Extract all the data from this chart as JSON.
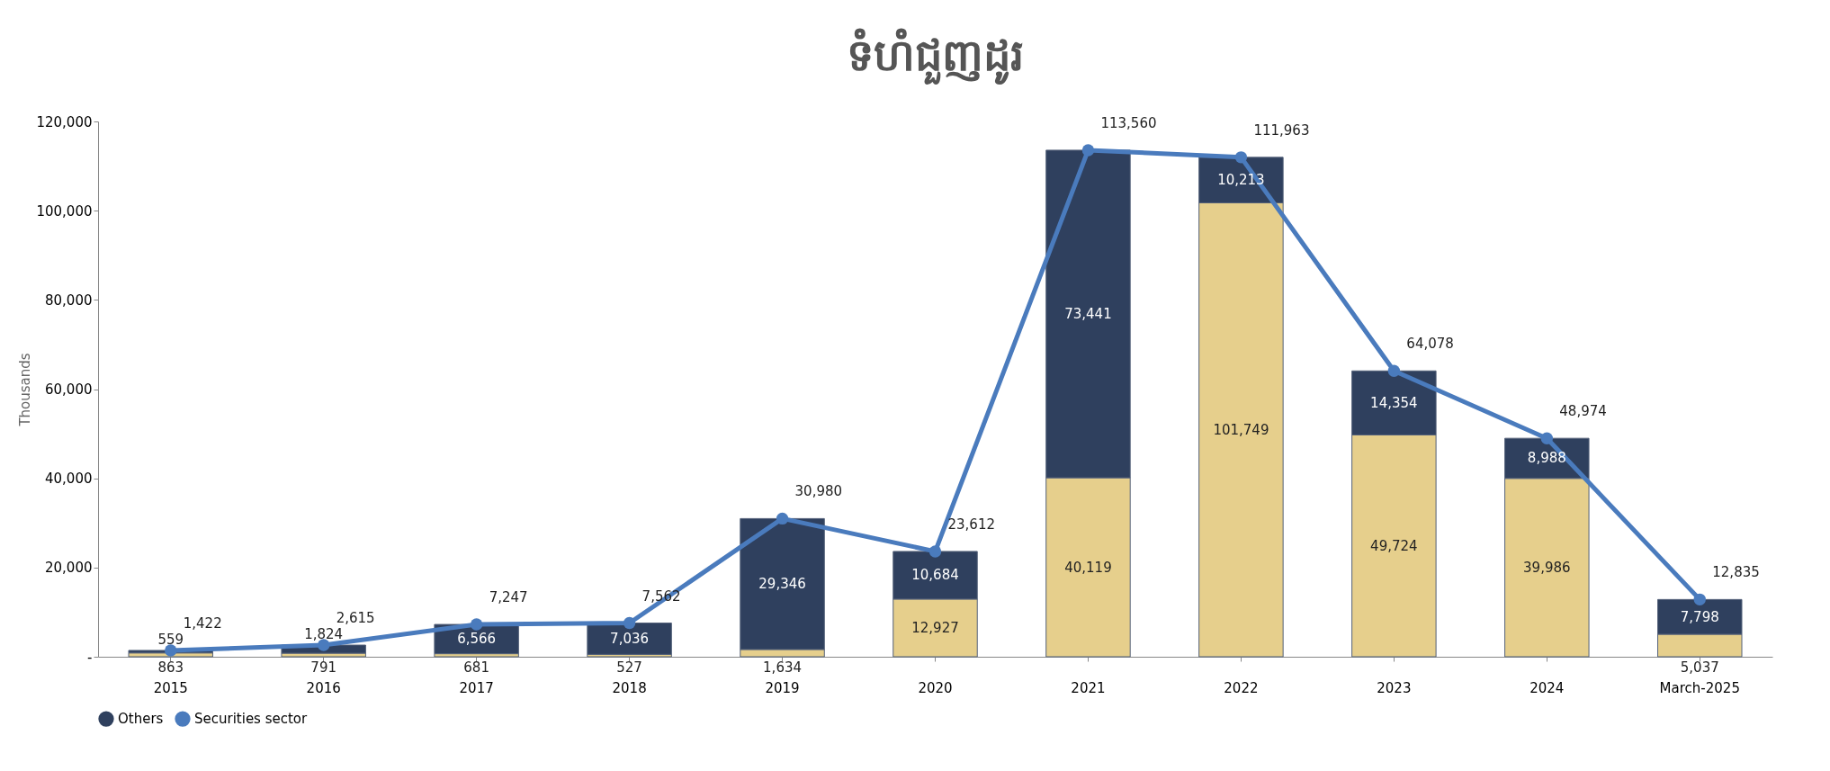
{
  "chart_data": {
    "type": "bar",
    "title": "ទំហំជួញដូរ",
    "ylabel": "Thousands",
    "categories": [
      "2015",
      "2016",
      "2017",
      "2018",
      "2019",
      "2020",
      "2021",
      "2022",
      "2023",
      "2024",
      "March-2025"
    ],
    "stacked": true,
    "legend": "bottom",
    "grid": false,
    "marker": "circle",
    "ylim": [
      0,
      120000
    ],
    "yticks": [
      {
        "value": 0,
        "label": "-"
      },
      {
        "value": 20000,
        "label": "20,000"
      },
      {
        "value": 40000,
        "label": "40,000"
      },
      {
        "value": 60000,
        "label": "60,000"
      },
      {
        "value": 80000,
        "label": "80,000"
      },
      {
        "value": 100000,
        "label": "100,000"
      },
      {
        "value": 120000,
        "label": "120,000"
      }
    ],
    "series": [
      {
        "color": "#e6cf8c",
        "values": [
          863,
          791,
          681,
          527,
          1634,
          12927,
          40119,
          101749,
          49724,
          39986,
          5037
        ],
        "value_labels": [
          "863",
          "791",
          "681",
          "527",
          "1,634",
          "12,927",
          "40,119",
          "101,749",
          "49,724",
          "39,986",
          "5,037"
        ]
      },
      {
        "name": "Others",
        "color": "#2f405e",
        "values": [
          559,
          1824,
          6566,
          7036,
          29346,
          10684,
          73441,
          10213,
          14354,
          8988,
          7798
        ],
        "value_labels": [
          "559",
          "1,824",
          "6,566",
          "7,036",
          "29,346",
          "10,684",
          "73,441",
          "10,213",
          "14,354",
          "8,988",
          "7,798"
        ]
      },
      {
        "type": "line",
        "name": "Securities sector",
        "color": "#4a7bbd",
        "values": [
          1422,
          2615,
          7247,
          7562,
          30980,
          23612,
          113560,
          111963,
          64078,
          48974,
          12835
        ],
        "value_labels": [
          "1,422",
          "2,615",
          "7,247",
          "7,562",
          "30,980",
          "23,612",
          "113,560",
          "111,963",
          "64,078",
          "48,974",
          "12,835"
        ]
      }
    ]
  }
}
